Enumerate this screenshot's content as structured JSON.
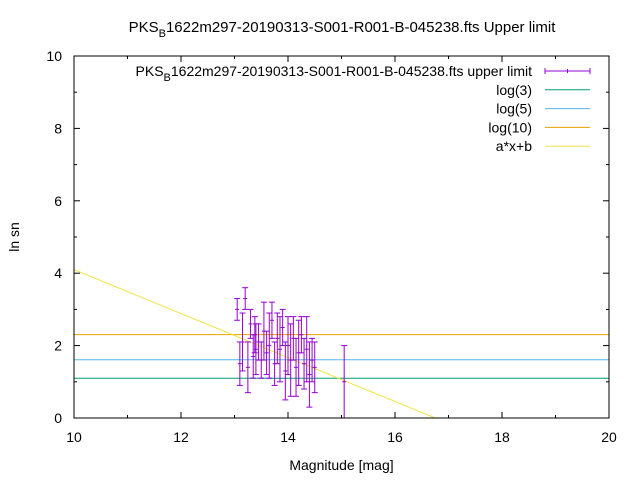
{
  "chart_data": {
    "type": "scatter",
    "title": {
      "prefix": "PKS",
      "sub": "B",
      "rest": "1622m297-20190313-S001-R001-B-045238.fts Upper limit"
    },
    "xlabel": "Magnitude [mag]",
    "ylabel": "ln sn",
    "xlim": [
      10,
      20
    ],
    "ylim": [
      0,
      10
    ],
    "xticks": [
      "10",
      "12",
      "14",
      "16",
      "18",
      "20"
    ],
    "yticks": [
      "0",
      "2",
      "4",
      "6",
      "8",
      "10"
    ],
    "grid": false,
    "legend_position": "top-right",
    "series": [
      {
        "name": {
          "prefix": "PKS",
          "sub": "B",
          "rest": "1622m297-20190313-S001-R001-B-045238.fts upper limit"
        },
        "kind": "errorbar",
        "color": "#9400d3",
        "points": [
          {
            "x": 13.05,
            "y": 3.0,
            "err": 0.3
          },
          {
            "x": 13.1,
            "y": 1.5,
            "err": 0.6
          },
          {
            "x": 13.15,
            "y": 2.1,
            "err": 0.8
          },
          {
            "x": 13.2,
            "y": 3.3,
            "err": 0.3
          },
          {
            "x": 13.25,
            "y": 1.4,
            "err": 0.7
          },
          {
            "x": 13.3,
            "y": 2.6,
            "err": 0.4
          },
          {
            "x": 13.35,
            "y": 1.7,
            "err": 0.6
          },
          {
            "x": 13.38,
            "y": 2.3,
            "err": 0.5
          },
          {
            "x": 13.4,
            "y": 1.9,
            "err": 0.7
          },
          {
            "x": 13.45,
            "y": 2.1,
            "err": 0.5
          },
          {
            "x": 13.5,
            "y": 1.6,
            "err": 0.5
          },
          {
            "x": 13.55,
            "y": 2.4,
            "err": 0.8
          },
          {
            "x": 13.6,
            "y": 1.8,
            "err": 0.6
          },
          {
            "x": 13.65,
            "y": 2.0,
            "err": 0.9
          },
          {
            "x": 13.7,
            "y": 2.7,
            "err": 0.5
          },
          {
            "x": 13.75,
            "y": 1.5,
            "err": 0.6
          },
          {
            "x": 13.8,
            "y": 2.2,
            "err": 0.7
          },
          {
            "x": 13.85,
            "y": 1.9,
            "err": 0.9
          },
          {
            "x": 13.9,
            "y": 2.5,
            "err": 0.5
          },
          {
            "x": 13.95,
            "y": 1.3,
            "err": 0.8
          },
          {
            "x": 14.0,
            "y": 2.0,
            "err": 0.8
          },
          {
            "x": 14.05,
            "y": 1.6,
            "err": 1.0
          },
          {
            "x": 14.1,
            "y": 2.2,
            "err": 0.6
          },
          {
            "x": 14.15,
            "y": 1.4,
            "err": 0.8
          },
          {
            "x": 14.2,
            "y": 1.8,
            "err": 0.9
          },
          {
            "x": 14.25,
            "y": 2.3,
            "err": 0.5
          },
          {
            "x": 14.3,
            "y": 1.5,
            "err": 0.7
          },
          {
            "x": 14.35,
            "y": 1.9,
            "err": 0.9
          },
          {
            "x": 14.4,
            "y": 1.2,
            "err": 0.9
          },
          {
            "x": 14.45,
            "y": 1.6,
            "err": 0.6
          },
          {
            "x": 14.5,
            "y": 1.4,
            "err": 0.7
          },
          {
            "x": 15.05,
            "y": 1.0,
            "err": 1.0
          }
        ]
      },
      {
        "name": "log(3)",
        "kind": "hline",
        "y": 1.0986,
        "color": "#009e73"
      },
      {
        "name": "log(5)",
        "kind": "hline",
        "y": 1.6094,
        "color": "#56b4e9"
      },
      {
        "name": "log(10)",
        "kind": "hline",
        "y": 2.3026,
        "color": "#e69f00"
      },
      {
        "name": "a*x+b",
        "kind": "line",
        "color": "#f0e442",
        "x": [
          10,
          16.75
        ],
        "y": [
          4.1,
          0
        ]
      }
    ]
  }
}
